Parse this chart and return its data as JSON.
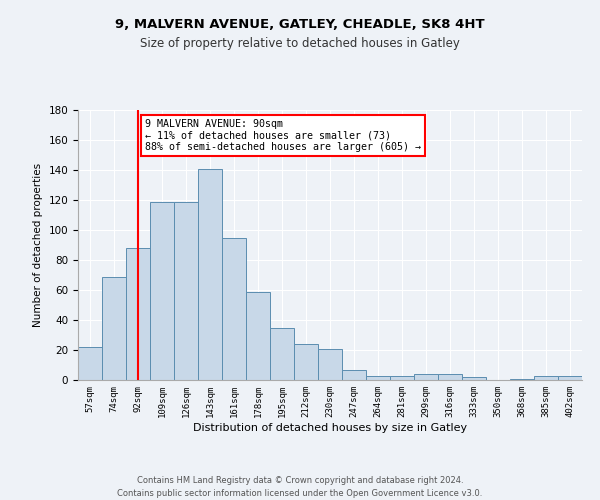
{
  "title1": "9, MALVERN AVENUE, GATLEY, CHEADLE, SK8 4HT",
  "title2": "Size of property relative to detached houses in Gatley",
  "xlabel": "Distribution of detached houses by size in Gatley",
  "ylabel": "Number of detached properties",
  "categories": [
    "57sqm",
    "74sqm",
    "92sqm",
    "109sqm",
    "126sqm",
    "143sqm",
    "161sqm",
    "178sqm",
    "195sqm",
    "212sqm",
    "230sqm",
    "247sqm",
    "264sqm",
    "281sqm",
    "299sqm",
    "316sqm",
    "333sqm",
    "350sqm",
    "368sqm",
    "385sqm",
    "402sqm"
  ],
  "values": [
    22,
    69,
    88,
    119,
    119,
    141,
    95,
    59,
    35,
    24,
    21,
    7,
    3,
    3,
    4,
    4,
    2,
    0,
    1,
    3,
    3
  ],
  "bar_color": "#c8d8e8",
  "bar_edge_color": "#5b8db0",
  "red_line_x": 2,
  "annotation_line1": "9 MALVERN AVENUE: 90sqm",
  "annotation_line2": "← 11% of detached houses are smaller (73)",
  "annotation_line3": "88% of semi-detached houses are larger (605) →",
  "footer1": "Contains HM Land Registry data © Crown copyright and database right 2024.",
  "footer2": "Contains public sector information licensed under the Open Government Licence v3.0.",
  "ylim": [
    0,
    180
  ],
  "yticks": [
    0,
    20,
    40,
    60,
    80,
    100,
    120,
    140,
    160,
    180
  ],
  "background_color": "#eef2f7"
}
